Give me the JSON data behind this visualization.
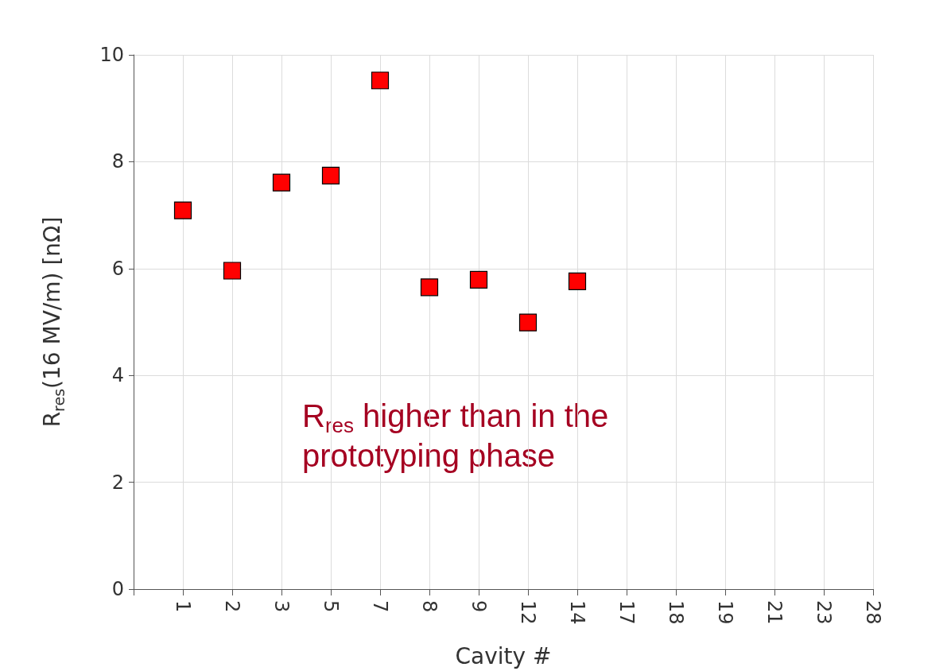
{
  "chart_data": {
    "type": "scatter",
    "xlabel": "Cavity #",
    "ylabel": "R$_{res}$(16 MV/m) [nΩ]",
    "categories": [
      "1",
      "2",
      "3",
      "5",
      "7",
      "8",
      "9",
      "12",
      "14",
      "17",
      "18",
      "19",
      "21",
      "23",
      "28"
    ],
    "series": [
      {
        "color": "#ff0000",
        "values": [
          7.09,
          5.96,
          7.61,
          7.74,
          9.52,
          5.65,
          5.79,
          4.99,
          5.76,
          null,
          null,
          null,
          null,
          null,
          null
        ]
      }
    ],
    "ylim": [
      0,
      10
    ],
    "yticks": [
      0,
      2,
      4,
      6,
      8,
      10
    ],
    "grid": true,
    "marker": "square",
    "annotations": [
      "R$_{res}$ higher than in the prototyping phase"
    ]
  }
}
